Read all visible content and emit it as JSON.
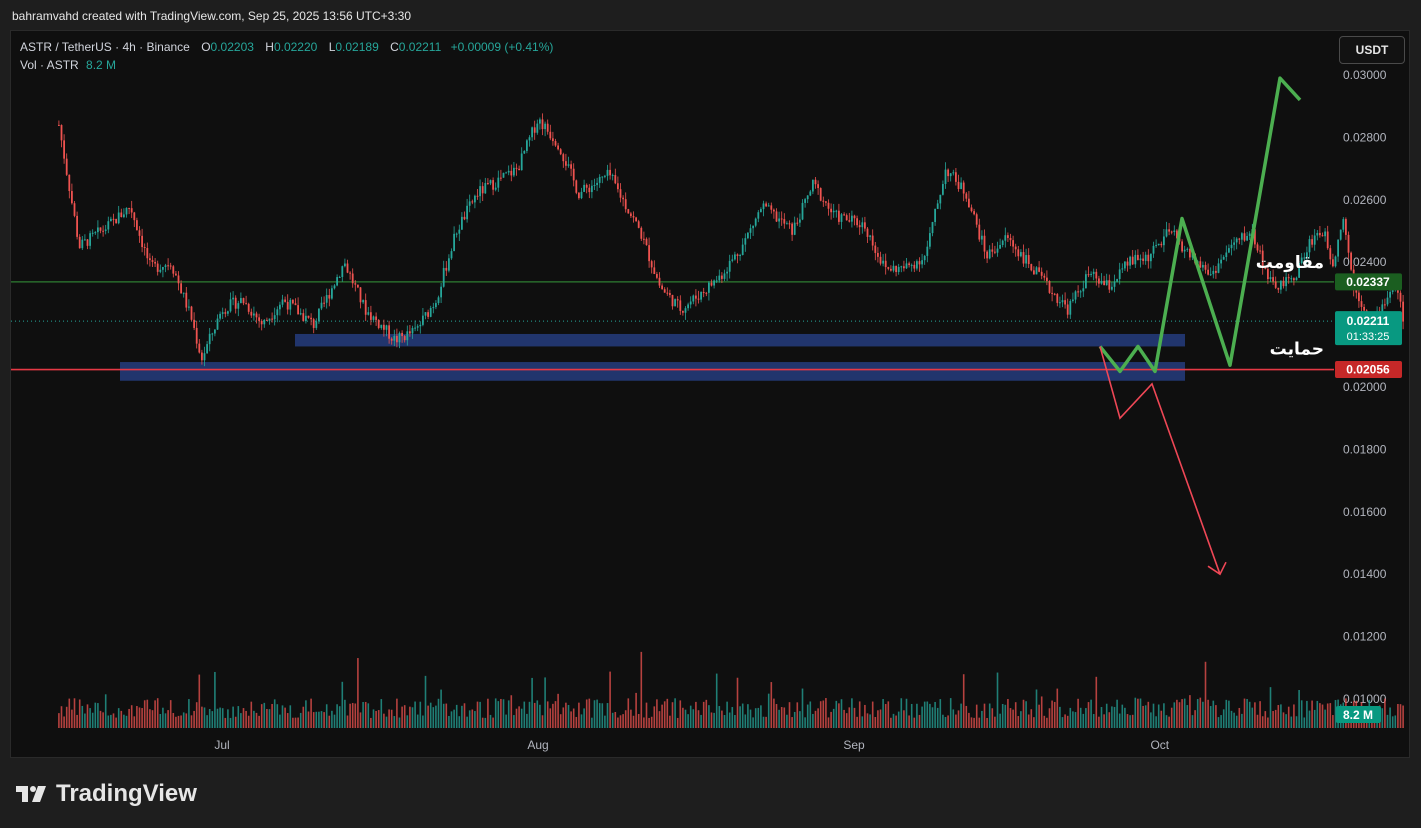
{
  "header": {
    "attribution": "bahramvahd created with TradingView.com, Sep 25, 2025 13:56 UTC+3:30"
  },
  "legend": {
    "symbol": "ASTR / TetherUS · 4h · Binance",
    "o_label": "O",
    "o_value": "0.02203",
    "h_label": "H",
    "h_value": "0.02220",
    "l_label": "L",
    "l_value": "0.02189",
    "c_label": "C",
    "c_value": "0.02211",
    "change": "+0.00009 (+0.41%)",
    "vol_label": "Vol · ASTR",
    "vol_value": "8.2 M"
  },
  "currency_button": "USDT",
  "annotations": {
    "resistance_label": "مقاومت",
    "support_label": "حمایت"
  },
  "price_tags": {
    "resistance": {
      "text": "0.02337",
      "color": "#1b5e20"
    },
    "last": {
      "text": "0.02211",
      "timer": "01:33:25",
      "color": "#089981"
    },
    "support": {
      "text": "0.02056",
      "color": "#c62828"
    },
    "volume": {
      "text": "8.2 M",
      "color": "#089981"
    }
  },
  "colors": {
    "up": "#26a69a",
    "down": "#ef5350",
    "resistance_line": "#2e7d32",
    "support_line": "#e53945",
    "zone": "#233a78",
    "bull_path": "#4caf50",
    "bear_path": "#ef4756"
  },
  "brand": {
    "name": "TradingView"
  },
  "chart_data": {
    "type": "candlestick",
    "title": "",
    "y_axis": {
      "min": 0.009,
      "max": 0.0305,
      "ticks": [
        "0.03000",
        "0.02800",
        "0.02600",
        "0.02400",
        "0.02000",
        "0.01800",
        "0.01600",
        "0.01400",
        "0.01200",
        "0.01000"
      ]
    },
    "x_axis": {
      "ticks": [
        "Jul",
        "Aug",
        "Sep",
        "Oct"
      ]
    },
    "anchors": [
      {
        "t": "Jun 15",
        "p": 0.0284
      },
      {
        "t": "Jun 17",
        "p": 0.0245
      },
      {
        "t": "Jun 20",
        "p": 0.0252
      },
      {
        "t": "Jun 22",
        "p": 0.0258
      },
      {
        "t": "Jun 24",
        "p": 0.0238
      },
      {
        "t": "Jun 26",
        "p": 0.024
      },
      {
        "t": "Jun 28",
        "p": 0.0222
      },
      {
        "t": "Jun 29",
        "p": 0.0209
      },
      {
        "t": "Jul 1",
        "p": 0.0225
      },
      {
        "t": "Jul 3",
        "p": 0.0228
      },
      {
        "t": "Jul 5",
        "p": 0.022
      },
      {
        "t": "Jul 7",
        "p": 0.0228
      },
      {
        "t": "Jul 10",
        "p": 0.022
      },
      {
        "t": "Jul 13",
        "p": 0.024
      },
      {
        "t": "Jul 15",
        "p": 0.0225
      },
      {
        "t": "Jul 18",
        "p": 0.0215
      },
      {
        "t": "Jul 20",
        "p": 0.0218
      },
      {
        "t": "Jul 22",
        "p": 0.0228
      },
      {
        "t": "Jul 24",
        "p": 0.025
      },
      {
        "t": "Jul 26",
        "p": 0.0262
      },
      {
        "t": "Jul 28",
        "p": 0.0266
      },
      {
        "t": "Jul 30",
        "p": 0.027
      },
      {
        "t": "Aug 1",
        "p": 0.0286
      },
      {
        "t": "Aug 3",
        "p": 0.0278
      },
      {
        "t": "Aug 5",
        "p": 0.0262
      },
      {
        "t": "Aug 8",
        "p": 0.0268
      },
      {
        "t": "Aug 11",
        "p": 0.025
      },
      {
        "t": "Aug 13",
        "p": 0.0232
      },
      {
        "t": "Aug 15",
        "p": 0.0225
      },
      {
        "t": "Aug 17",
        "p": 0.023
      },
      {
        "t": "Aug 19",
        "p": 0.0236
      },
      {
        "t": "Aug 21",
        "p": 0.0245
      },
      {
        "t": "Aug 23",
        "p": 0.0258
      },
      {
        "t": "Aug 26",
        "p": 0.025
      },
      {
        "t": "Aug 28",
        "p": 0.0265
      },
      {
        "t": "Aug 30",
        "p": 0.0255
      },
      {
        "t": "Sep 2",
        "p": 0.0252
      },
      {
        "t": "Sep 4",
        "p": 0.0238
      },
      {
        "t": "Sep 6",
        "p": 0.0238
      },
      {
        "t": "Sep 8",
        "p": 0.0242
      },
      {
        "t": "Sep 10",
        "p": 0.027
      },
      {
        "t": "Sep 12",
        "p": 0.0262
      },
      {
        "t": "Sep 14",
        "p": 0.0242
      },
      {
        "t": "Sep 16",
        "p": 0.0248
      },
      {
        "t": "Sep 18",
        "p": 0.024
      },
      {
        "t": "Sep 20",
        "p": 0.0232
      },
      {
        "t": "Sep 22",
        "p": 0.0225
      },
      {
        "t": "Sep 24",
        "p": 0.0236
      },
      {
        "t": "Sep 26",
        "p": 0.0232
      },
      {
        "t": "Sep 28",
        "p": 0.024
      },
      {
        "t": "Sep 30",
        "p": 0.0242
      },
      {
        "t": "Oct 2",
        "p": 0.025
      },
      {
        "t": "Oct 4",
        "p": 0.0242
      },
      {
        "t": "Oct 6",
        "p": 0.0236
      },
      {
        "t": "Oct 8",
        "p": 0.0245
      },
      {
        "t": "Oct 10",
        "p": 0.025
      },
      {
        "t": "Oct 12",
        "p": 0.0232
      },
      {
        "t": "Oct 14",
        "p": 0.0234
      },
      {
        "t": "Oct 16",
        "p": 0.0248
      },
      {
        "t": "Oct 17",
        "p": 0.025
      },
      {
        "t": "Oct 18",
        "p": 0.024
      },
      {
        "t": "Oct 19",
        "p": 0.0255
      },
      {
        "t": "Oct 20",
        "p": 0.0232
      },
      {
        "t": "Oct 22",
        "p": 0.022
      },
      {
        "t": "Oct 24",
        "p": 0.0234
      },
      {
        "t": "Oct 25",
        "p": 0.0221
      }
    ],
    "levels": {
      "resistance": 0.02337,
      "last": 0.02211,
      "support": 0.02056
    },
    "zones": [
      {
        "from": 0.0217,
        "to": 0.0213
      },
      {
        "from": 0.0208,
        "to": 0.0202
      }
    ],
    "projections": {
      "bullish": [
        0.0213,
        0.0205,
        0.0213,
        0.0205,
        0.0254,
        0.0207,
        0.0299,
        0.0292
      ],
      "bearish": [
        0.0213,
        0.019,
        0.0201,
        0.014
      ]
    }
  }
}
